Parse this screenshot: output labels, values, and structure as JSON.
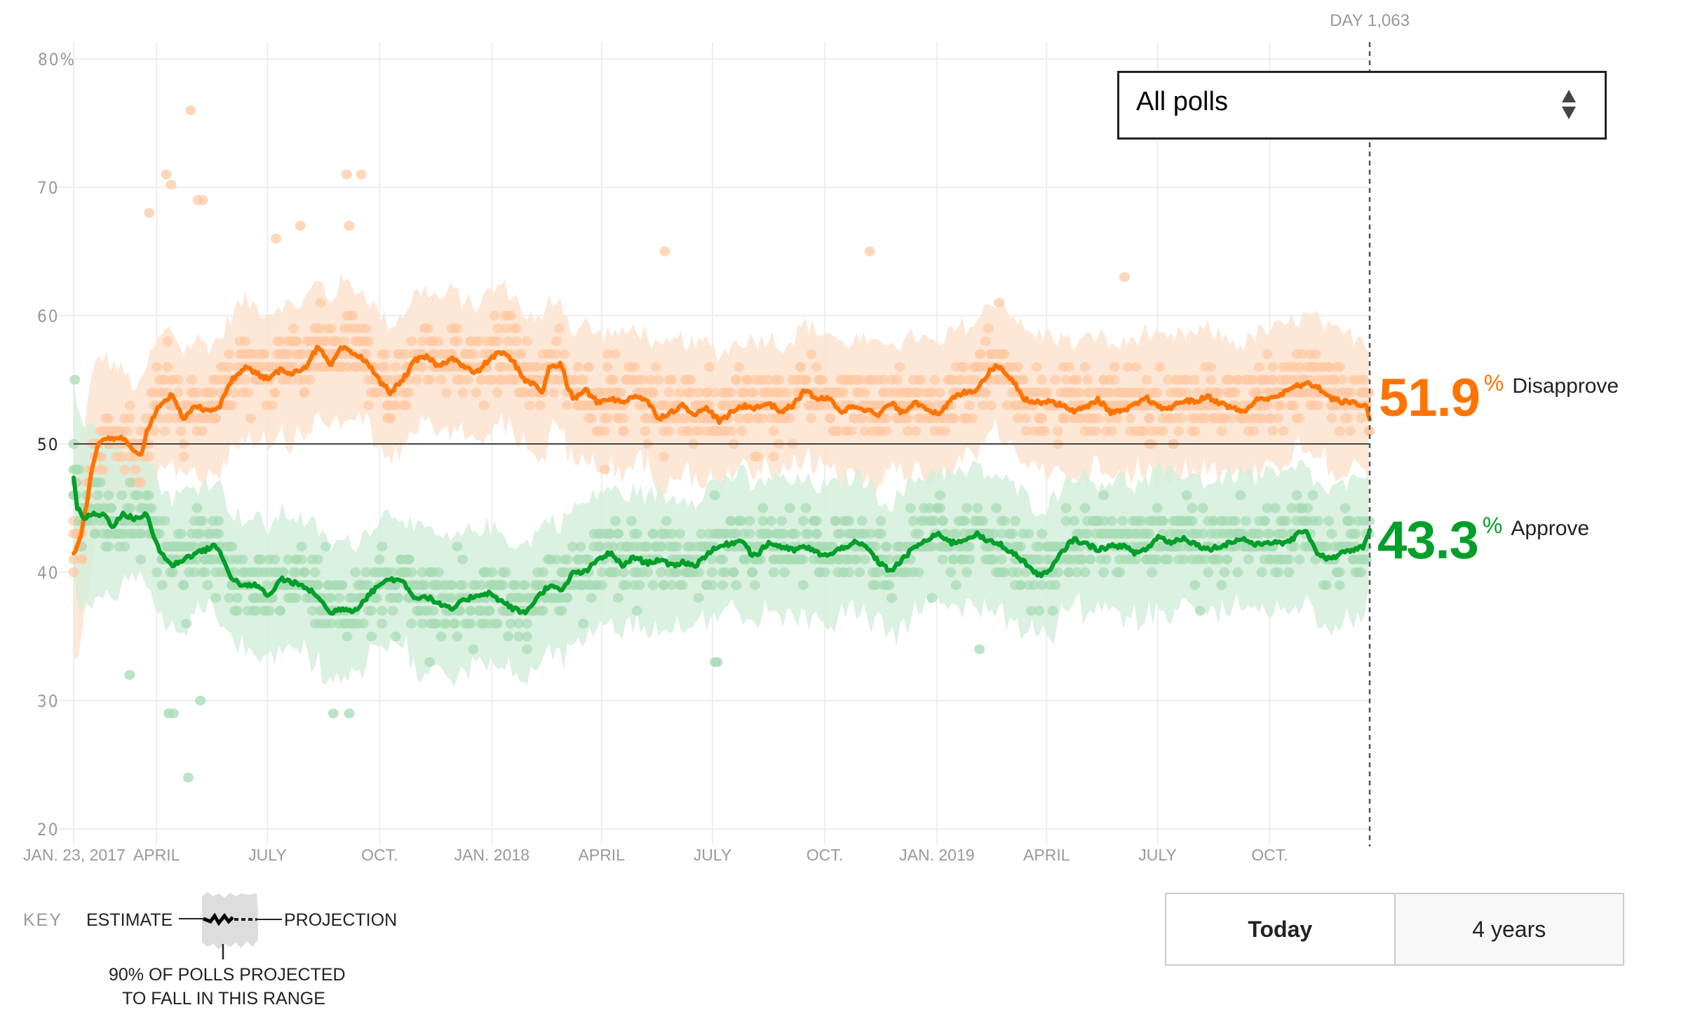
{
  "dropdown": {
    "selected": "All polls",
    "icon": "up-down-arrows-icon"
  },
  "day_label": "DAY 1,063",
  "current": {
    "disapprove": {
      "value": "51.9",
      "pct": "%",
      "label": "Disapprove",
      "color": "#ff7300"
    },
    "approve": {
      "value": "43.3",
      "pct": "%",
      "label": "Approve",
      "color": "#009f29"
    }
  },
  "key": {
    "title": "KEY",
    "estimate": "ESTIMATE",
    "projection": "PROJECTION",
    "range_line1": "90% OF POLLS PROJECTED",
    "range_line2": "TO FALL IN THIS RANGE"
  },
  "time_buttons": [
    {
      "label": "Today",
      "active": true
    },
    {
      "label": "4 years",
      "active": false
    }
  ],
  "colors": {
    "disapprove_line": "#ff7300",
    "approve_line": "#009f29",
    "disapprove_dot": "#ffc9a3",
    "approve_dot": "#a6dbb4",
    "disapprove_band": "#fde4d1",
    "approve_band": "#d5eedc",
    "reference_line": "#444444"
  },
  "chart_data": {
    "type": "line",
    "title": "",
    "xlabel": "",
    "ylabel": "",
    "x_unit": "days since Jan. 23, 2017",
    "xlim": [
      0,
      1063
    ],
    "ylim": [
      20,
      80
    ],
    "yticks": [
      {
        "value": 80,
        "label": "80%"
      },
      {
        "value": 70,
        "label": "70"
      },
      {
        "value": 60,
        "label": "60"
      },
      {
        "value": 50,
        "label": "50"
      },
      {
        "value": 40,
        "label": "40"
      },
      {
        "value": 30,
        "label": "30"
      },
      {
        "value": 20,
        "label": "20"
      }
    ],
    "xticks": [
      {
        "day": 0,
        "label": "JAN. 23, 2017"
      },
      {
        "day": 68,
        "label": "APRIL"
      },
      {
        "day": 159,
        "label": "JULY"
      },
      {
        "day": 251,
        "label": "OCT."
      },
      {
        "day": 343,
        "label": "JAN. 2018"
      },
      {
        "day": 433,
        "label": "APRIL"
      },
      {
        "day": 524,
        "label": "JULY"
      },
      {
        "day": 616,
        "label": "OCT."
      },
      {
        "day": 708,
        "label": "JAN. 2019"
      },
      {
        "day": 798,
        "label": "APRIL"
      },
      {
        "day": 889,
        "label": "JULY"
      },
      {
        "day": 981,
        "label": "OCT."
      }
    ],
    "reference_line": 50,
    "current_day": 1063,
    "grid": true,
    "legend": "right",
    "band_halfwidth": 5.2,
    "series": [
      {
        "name": "Disapprove",
        "final": 51.9,
        "points": [
          [
            0,
            41.5
          ],
          [
            5,
            42.5
          ],
          [
            10,
            45
          ],
          [
            15,
            48
          ],
          [
            20,
            50
          ],
          [
            25,
            50.5
          ],
          [
            30,
            50.3
          ],
          [
            40,
            50.5
          ],
          [
            50,
            49.3
          ],
          [
            55,
            49
          ],
          [
            60,
            51
          ],
          [
            70,
            53
          ],
          [
            80,
            53.8
          ],
          [
            90,
            52
          ],
          [
            100,
            53
          ],
          [
            110,
            52.5
          ],
          [
            120,
            53
          ],
          [
            130,
            55
          ],
          [
            140,
            56
          ],
          [
            150,
            55.5
          ],
          [
            160,
            55
          ],
          [
            170,
            55.8
          ],
          [
            180,
            55.5
          ],
          [
            190,
            56
          ],
          [
            200,
            57.5
          ],
          [
            205,
            57
          ],
          [
            210,
            56
          ],
          [
            220,
            57.5
          ],
          [
            230,
            57
          ],
          [
            240,
            56.5
          ],
          [
            250,
            55
          ],
          [
            260,
            54
          ],
          [
            270,
            55
          ],
          [
            280,
            56.5
          ],
          [
            290,
            56.8
          ],
          [
            300,
            56
          ],
          [
            310,
            56.8
          ],
          [
            320,
            56
          ],
          [
            330,
            55.5
          ],
          [
            340,
            56.5
          ],
          [
            350,
            57.2
          ],
          [
            360,
            56.5
          ],
          [
            370,
            55
          ],
          [
            380,
            54.5
          ],
          [
            385,
            54
          ],
          [
            390,
            56
          ],
          [
            400,
            56.2
          ],
          [
            405,
            54.5
          ],
          [
            410,
            53.5
          ],
          [
            420,
            54.2
          ],
          [
            430,
            53.2
          ],
          [
            440,
            53.6
          ],
          [
            450,
            53.2
          ],
          [
            460,
            53.8
          ],
          [
            470,
            53.4
          ],
          [
            480,
            52
          ],
          [
            490,
            52.5
          ],
          [
            500,
            53
          ],
          [
            510,
            52.3
          ],
          [
            520,
            52.8
          ],
          [
            530,
            51.7
          ],
          [
            540,
            52.5
          ],
          [
            550,
            53
          ],
          [
            560,
            52.8
          ],
          [
            570,
            53.2
          ],
          [
            580,
            52.5
          ],
          [
            590,
            53
          ],
          [
            600,
            54.2
          ],
          [
            610,
            53.5
          ],
          [
            620,
            53.5
          ],
          [
            630,
            52.5
          ],
          [
            640,
            53
          ],
          [
            650,
            52.7
          ],
          [
            660,
            52.2
          ],
          [
            670,
            53.2
          ],
          [
            680,
            52.4
          ],
          [
            690,
            53.3
          ],
          [
            700,
            52.8
          ],
          [
            710,
            52.2
          ],
          [
            720,
            53.5
          ],
          [
            730,
            54
          ],
          [
            740,
            54.2
          ],
          [
            750,
            55.5
          ],
          [
            755,
            56
          ],
          [
            760,
            56
          ],
          [
            770,
            55
          ],
          [
            780,
            53.5
          ],
          [
            790,
            53.2
          ],
          [
            800,
            53.4
          ],
          [
            810,
            53
          ],
          [
            820,
            52.6
          ],
          [
            830,
            52.8
          ],
          [
            840,
            53.5
          ],
          [
            850,
            52.5
          ],
          [
            860,
            52.5
          ],
          [
            870,
            53
          ],
          [
            880,
            53.6
          ],
          [
            890,
            52.8
          ],
          [
            900,
            52.8
          ],
          [
            910,
            53.4
          ],
          [
            920,
            53.3
          ],
          [
            930,
            53.7
          ],
          [
            940,
            53.2
          ],
          [
            950,
            52.8
          ],
          [
            960,
            52.5
          ],
          [
            970,
            53.4
          ],
          [
            980,
            53.6
          ],
          [
            990,
            53.8
          ],
          [
            1000,
            54.4
          ],
          [
            1010,
            54.7
          ],
          [
            1020,
            54.5
          ],
          [
            1030,
            53.6
          ],
          [
            1040,
            53.3
          ],
          [
            1050,
            53.2
          ],
          [
            1060,
            53.0
          ],
          [
            1063,
            51.9
          ]
        ]
      },
      {
        "name": "Approve",
        "final": 43.3,
        "points": [
          [
            0,
            47.5
          ],
          [
            3,
            45
          ],
          [
            8,
            44.2
          ],
          [
            15,
            44.5
          ],
          [
            25,
            44.5
          ],
          [
            32,
            43.6
          ],
          [
            40,
            44.5
          ],
          [
            50,
            44.2
          ],
          [
            60,
            44.5
          ],
          [
            65,
            43
          ],
          [
            70,
            41.8
          ],
          [
            80,
            40.5
          ],
          [
            90,
            41
          ],
          [
            100,
            41.5
          ],
          [
            110,
            41.8
          ],
          [
            115,
            42.2
          ],
          [
            120,
            41.5
          ],
          [
            130,
            39.5
          ],
          [
            140,
            38.9
          ],
          [
            150,
            39
          ],
          [
            160,
            38.1
          ],
          [
            170,
            39.5
          ],
          [
            180,
            39.2
          ],
          [
            190,
            38.8
          ],
          [
            200,
            38.2
          ],
          [
            210,
            36.8
          ],
          [
            220,
            37.2
          ],
          [
            230,
            37
          ],
          [
            240,
            38
          ],
          [
            250,
            39
          ],
          [
            260,
            39.5
          ],
          [
            270,
            39.3
          ],
          [
            280,
            38
          ],
          [
            290,
            38.1
          ],
          [
            300,
            37.5
          ],
          [
            310,
            37.1
          ],
          [
            320,
            37.8
          ],
          [
            330,
            38.2
          ],
          [
            340,
            38.4
          ],
          [
            350,
            37.8
          ],
          [
            360,
            37.2
          ],
          [
            370,
            36.8
          ],
          [
            380,
            38
          ],
          [
            390,
            39
          ],
          [
            400,
            38.5
          ],
          [
            410,
            40
          ],
          [
            420,
            40
          ],
          [
            430,
            41
          ],
          [
            440,
            41.5
          ],
          [
            450,
            40.5
          ],
          [
            460,
            41.2
          ],
          [
            470,
            40.7
          ],
          [
            480,
            41
          ],
          [
            490,
            40.5
          ],
          [
            500,
            40.8
          ],
          [
            510,
            40.5
          ],
          [
            520,
            41.5
          ],
          [
            530,
            42
          ],
          [
            540,
            42.3
          ],
          [
            550,
            42.5
          ],
          [
            555,
            41.5
          ],
          [
            560,
            41.3
          ],
          [
            570,
            42.3
          ],
          [
            580,
            42
          ],
          [
            590,
            41.7
          ],
          [
            600,
            42
          ],
          [
            610,
            41.5
          ],
          [
            620,
            41.3
          ],
          [
            630,
            41.9
          ],
          [
            640,
            42.3
          ],
          [
            650,
            42
          ],
          [
            660,
            40.8
          ],
          [
            670,
            40.1
          ],
          [
            680,
            41
          ],
          [
            690,
            42
          ],
          [
            700,
            42.5
          ],
          [
            710,
            43
          ],
          [
            720,
            42.3
          ],
          [
            730,
            42.5
          ],
          [
            740,
            43
          ],
          [
            750,
            42.4
          ],
          [
            760,
            42.2
          ],
          [
            770,
            41.5
          ],
          [
            780,
            40.8
          ],
          [
            790,
            39.8
          ],
          [
            800,
            40
          ],
          [
            810,
            41.5
          ],
          [
            820,
            42.6
          ],
          [
            830,
            42.2
          ],
          [
            840,
            41.8
          ],
          [
            850,
            42
          ],
          [
            860,
            42.1
          ],
          [
            870,
            41.5
          ],
          [
            880,
            41.8
          ],
          [
            890,
            42.8
          ],
          [
            900,
            42.3
          ],
          [
            910,
            42.7
          ],
          [
            920,
            42.2
          ],
          [
            930,
            41.8
          ],
          [
            940,
            42
          ],
          [
            950,
            42.4
          ],
          [
            960,
            42.6
          ],
          [
            970,
            42.1
          ],
          [
            980,
            42.4
          ],
          [
            990,
            42.2
          ],
          [
            1000,
            42.6
          ],
          [
            1010,
            43.4
          ],
          [
            1020,
            41.5
          ],
          [
            1030,
            41
          ],
          [
            1040,
            41.5
          ],
          [
            1050,
            41.7
          ],
          [
            1058,
            42
          ],
          [
            1063,
            43.3
          ]
        ]
      }
    ],
    "notable_polls": [
      {
        "series": "Disapprove",
        "day": 96,
        "value": 76
      },
      {
        "series": "Disapprove",
        "day": 76,
        "value": 71
      },
      {
        "series": "Disapprove",
        "day": 80,
        "value": 70.2
      },
      {
        "series": "Disapprove",
        "day": 102,
        "value": 69
      },
      {
        "series": "Disapprove",
        "day": 106,
        "value": 69
      },
      {
        "series": "Disapprove",
        "day": 62,
        "value": 68
      },
      {
        "series": "Disapprove",
        "day": 224,
        "value": 71
      },
      {
        "series": "Disapprove",
        "day": 236,
        "value": 71
      },
      {
        "series": "Disapprove",
        "day": 166,
        "value": 66
      },
      {
        "series": "Disapprove",
        "day": 186,
        "value": 67
      },
      {
        "series": "Disapprove",
        "day": 226,
        "value": 67
      },
      {
        "series": "Disapprove",
        "day": 485,
        "value": 65
      },
      {
        "series": "Disapprove",
        "day": 653,
        "value": 65
      },
      {
        "series": "Disapprove",
        "day": 862,
        "value": 63
      },
      {
        "series": "Approve",
        "day": 94,
        "value": 24
      },
      {
        "series": "Approve",
        "day": 78,
        "value": 29
      },
      {
        "series": "Approve",
        "day": 82,
        "value": 29
      },
      {
        "series": "Approve",
        "day": 104,
        "value": 30
      },
      {
        "series": "Approve",
        "day": 213,
        "value": 29
      },
      {
        "series": "Approve",
        "day": 226,
        "value": 29
      },
      {
        "series": "Approve",
        "day": 46,
        "value": 32
      },
      {
        "series": "Approve",
        "day": 292,
        "value": 33
      },
      {
        "series": "Approve",
        "day": 526,
        "value": 33
      },
      {
        "series": "Approve",
        "day": 743,
        "value": 34
      },
      {
        "series": "Approve",
        "day": 528,
        "value": 33
      },
      {
        "series": "Approve",
        "day": 1,
        "value": 55
      }
    ]
  }
}
